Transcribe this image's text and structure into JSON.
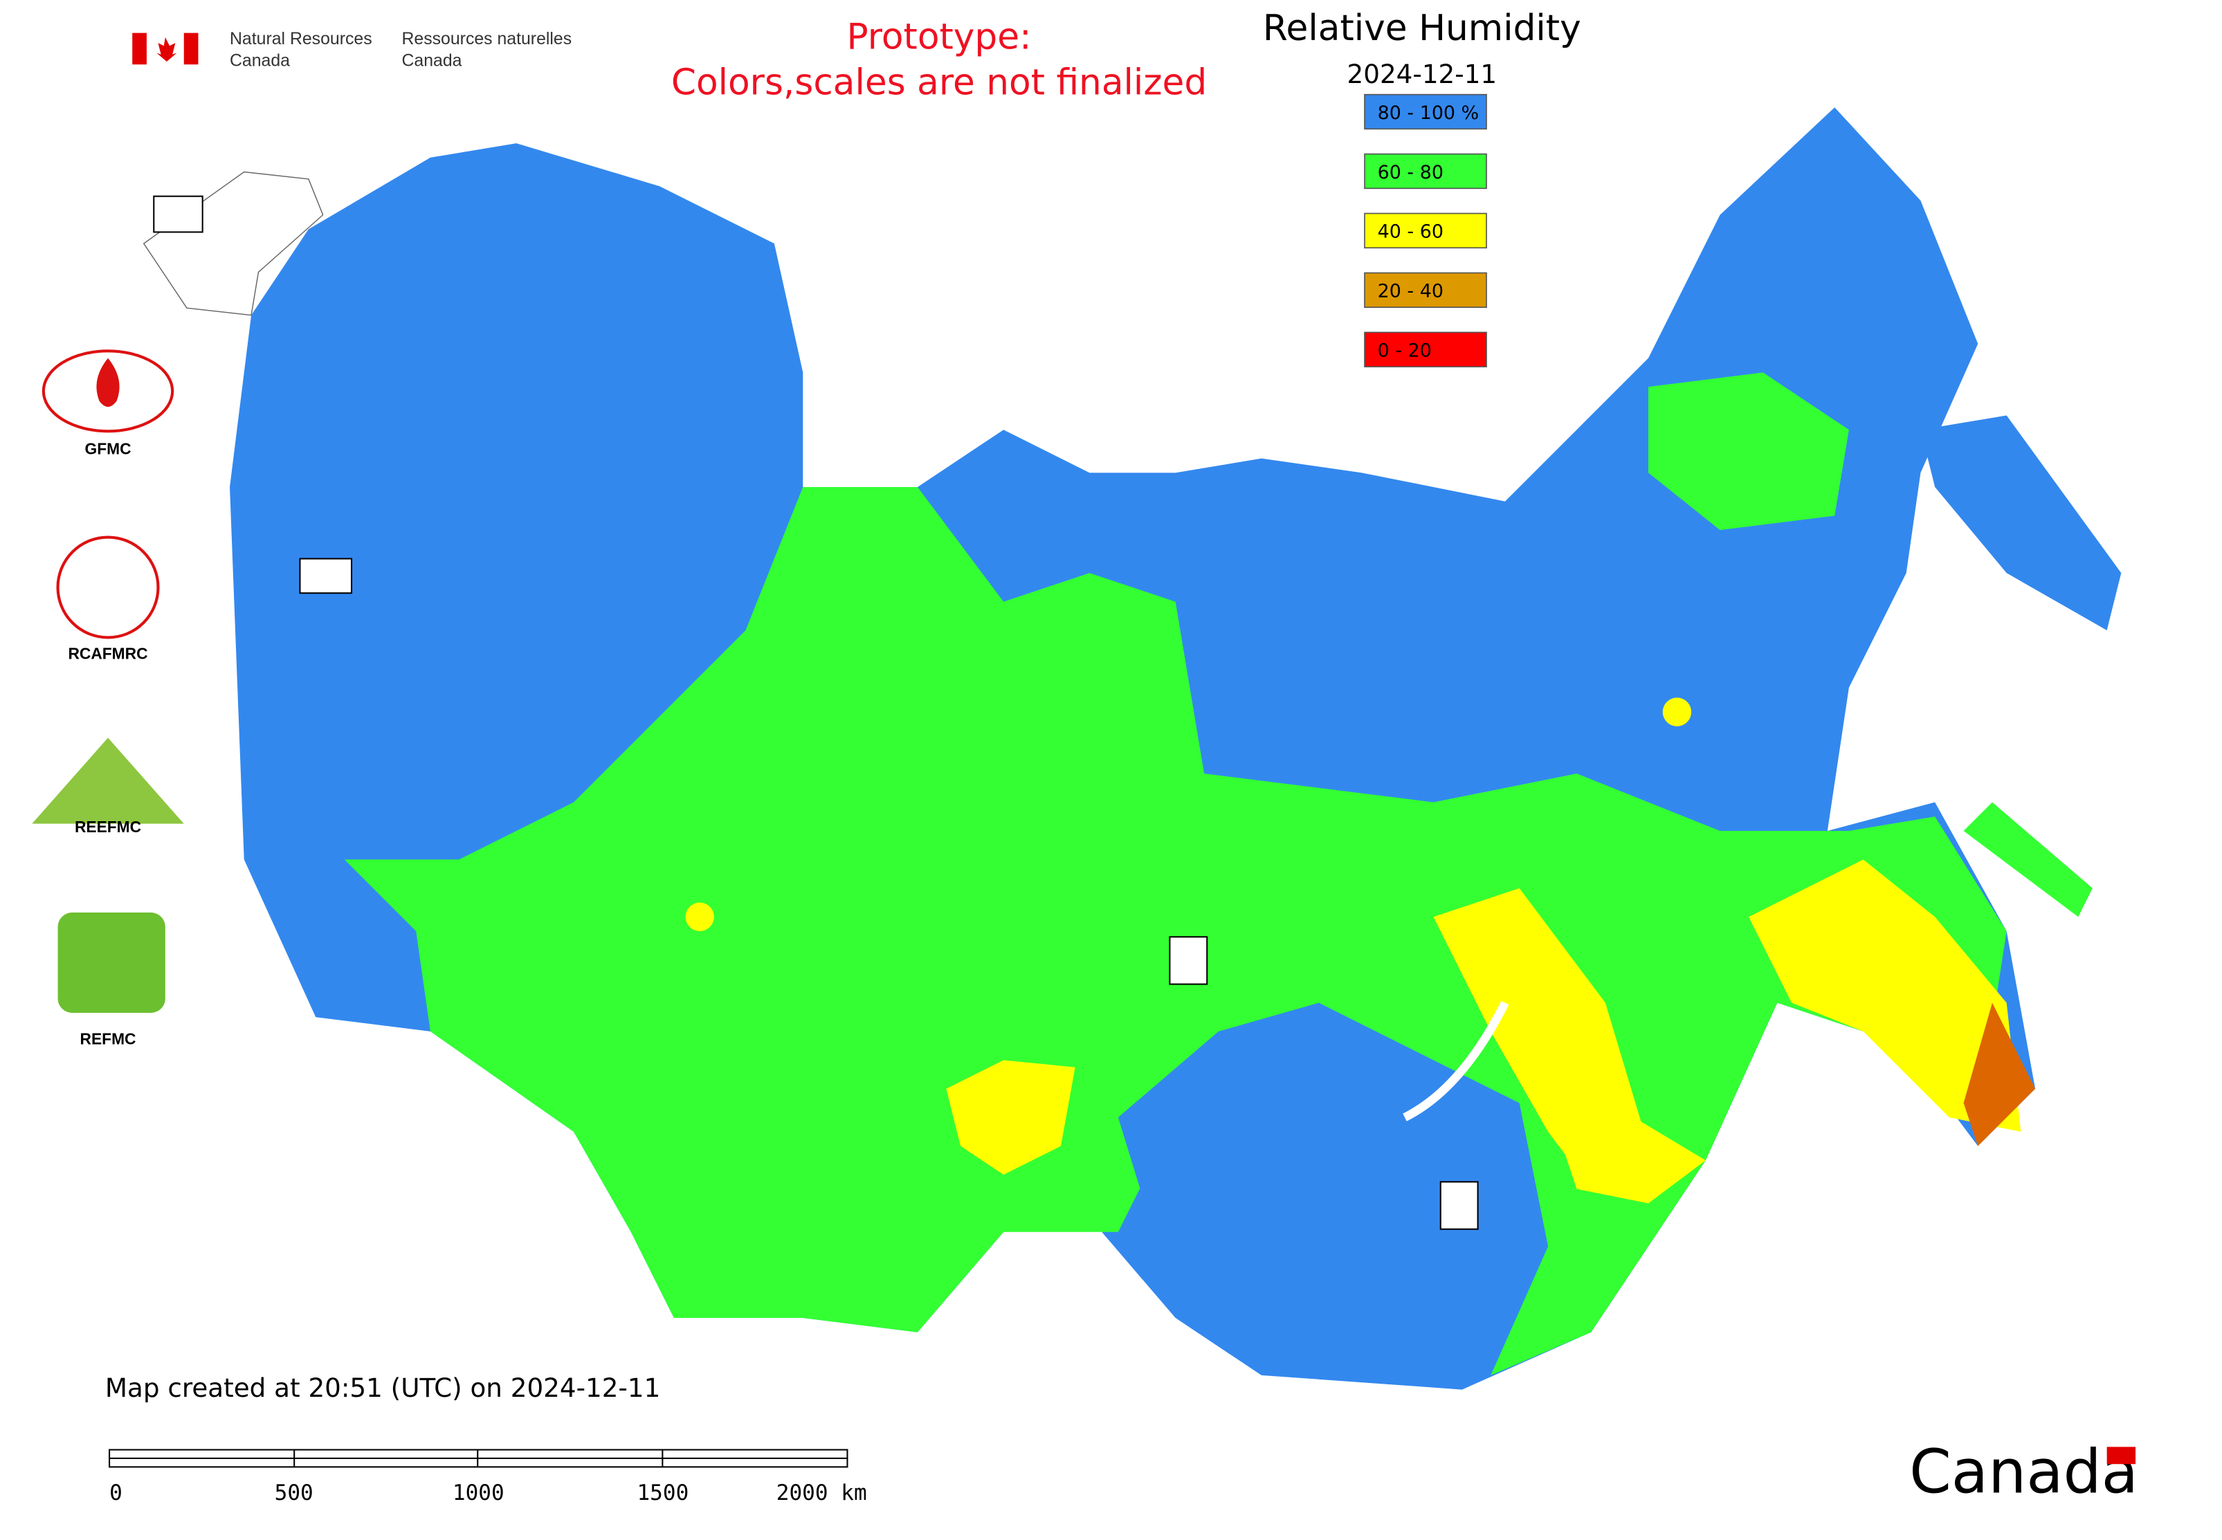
{
  "header": {
    "agency_en": [
      "Natural Resources",
      "Canada"
    ],
    "agency_fr": [
      "Ressources naturelles",
      "Canada"
    ],
    "notice": [
      "Prototype:",
      "Colors,scales are not finalized"
    ]
  },
  "map": {
    "title": "Relative Humidity",
    "date": "2024-12-11",
    "legend": [
      {
        "label": "80 - 100 %",
        "color": "#3388ee"
      },
      {
        "label": "60 - 80",
        "color": "#33ff33"
      },
      {
        "label": "40 - 60",
        "color": "#ffff00"
      },
      {
        "label": "20 - 40",
        "color": "#dd9900"
      },
      {
        "label": "0 - 20",
        "color": "#ff0000"
      }
    ],
    "logos": [
      "GFMC",
      "RCAFMRC",
      "REEFMC",
      "REFMC"
    ],
    "footnote": "Map created at 20:51 (UTC) on 2024-12-11",
    "scale_bar": [
      "0",
      "500",
      "1000",
      "1500",
      "2000 km"
    ],
    "wordmark": "Canada"
  }
}
